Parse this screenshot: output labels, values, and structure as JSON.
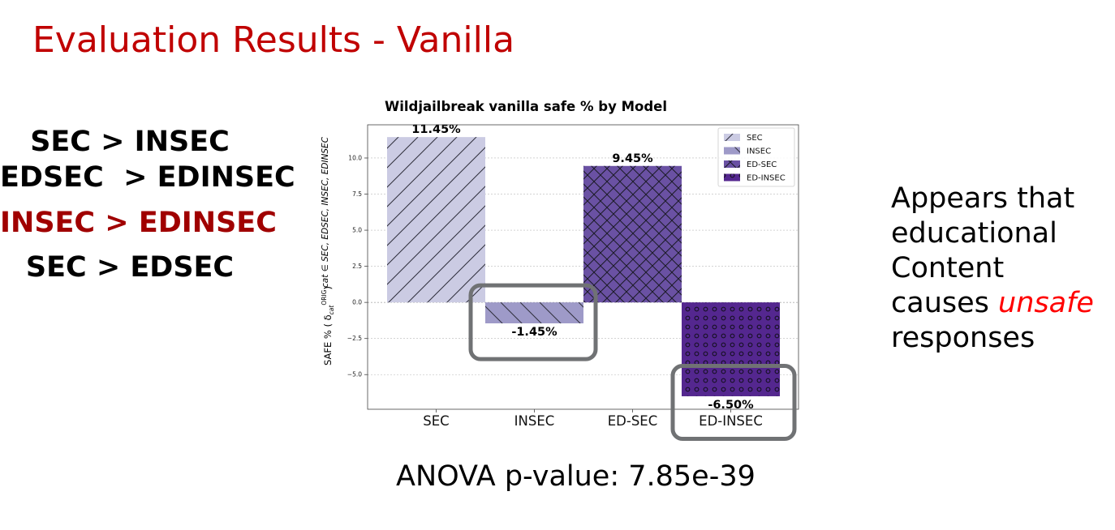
{
  "slide": {
    "title": "Evaluation Results - Vanilla",
    "comparisons": [
      {
        "text": "SEC > INSEC",
        "highlight": false
      },
      {
        "text": "EDSEC  > EDINSEC",
        "highlight": false
      },
      {
        "text": "INSEC > EDINSEC",
        "highlight": true
      },
      {
        "text": "SEC > EDSEC",
        "highlight": false
      }
    ],
    "anova": "ANOVA p-value: 7.85e-39",
    "note": {
      "line1": "Appears that",
      "line2": "educational",
      "line3": "Content",
      "line4_prefix": "causes ",
      "line4_emphasis": "unsafe",
      "line5": "responses"
    },
    "colors": {
      "title": "#c00000",
      "highlight": "#a00000",
      "emphasis": "#ff0000",
      "callout_box": "#707274"
    }
  },
  "chart_data": {
    "type": "bar",
    "title": "Wildjailbreak vanilla safe % by Model",
    "ylabel_line1": "SAFE % ( δ",
    "ylabel_sub": "cat",
    "ylabel_sup": "ORIG",
    "ylabel_end": ")",
    "ylabel_line2": "cat ∈ SEC, EDSEC, INSEC, EDINSEC",
    "categories": [
      "SEC",
      "INSEC",
      "ED-SEC",
      "ED-INSEC"
    ],
    "values": [
      11.45,
      -1.45,
      9.45,
      -6.5
    ],
    "value_labels": [
      "11.45%",
      "-1.45%",
      "9.45%",
      "-6.50%"
    ],
    "colors": [
      "#cbcbe3",
      "#9e9ac8",
      "#6a51a3",
      "#54278f"
    ],
    "patterns": [
      "diagonal",
      "back-diagonal",
      "crosshatch",
      "circles"
    ],
    "legend": [
      "SEC",
      "INSEC",
      "ED-SEC",
      "ED-INSEC"
    ],
    "legend_position": "top-right",
    "ylim": [
      -7.4,
      12.3
    ],
    "yticks": [
      -5.0,
      -2.5,
      0.0,
      2.5,
      5.0,
      7.5,
      10.0
    ],
    "ytick_labels": [
      "−5.0",
      "−2.5",
      "0.0",
      "2.5",
      "5.0",
      "7.5",
      "10.0"
    ],
    "grid": "horizontal-dashed",
    "highlighted_categories": [
      "INSEC",
      "ED-INSEC"
    ]
  }
}
